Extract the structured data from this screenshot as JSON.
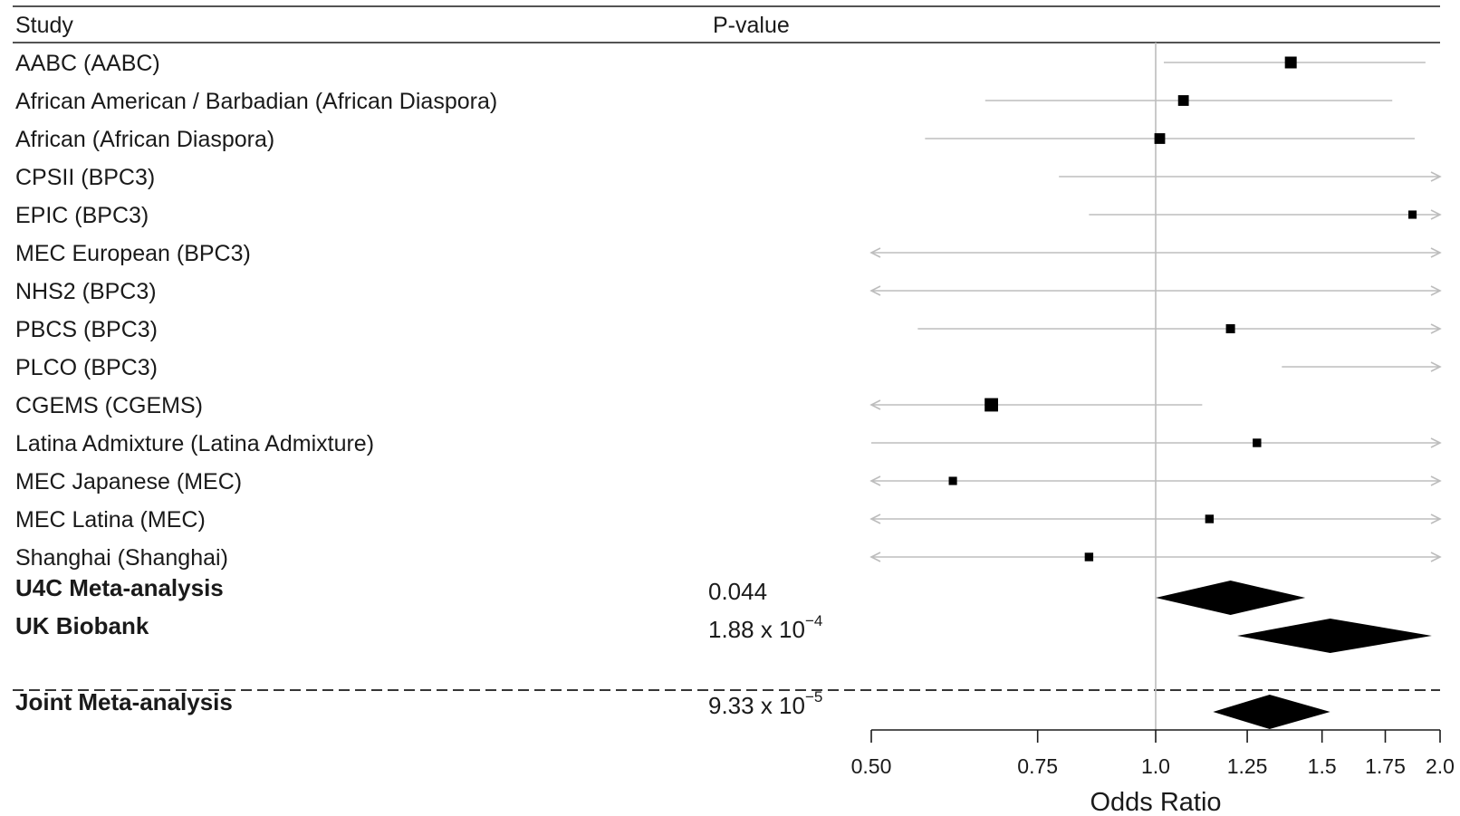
{
  "header": {
    "study": "Study",
    "pvalue": "P-value"
  },
  "chart_data": {
    "type": "forest",
    "xlabel": "Odds Ratio",
    "xscale": "log",
    "xlim": [
      0.5,
      2.0
    ],
    "reference_line": 1.0,
    "ticks": [
      {
        "value": 0.5,
        "label": "0.50"
      },
      {
        "value": 0.75,
        "label": "0.75"
      },
      {
        "value": 1.0,
        "label": "1.0"
      },
      {
        "value": 1.25,
        "label": "1.25"
      },
      {
        "value": 1.5,
        "label": "1.5"
      },
      {
        "value": 1.75,
        "label": "1.75"
      },
      {
        "value": 2.0,
        "label": "2.0"
      }
    ],
    "studies": [
      {
        "label": "AABC (AABC)",
        "or": 1.39,
        "lo": 1.02,
        "hi": 1.93,
        "weight": 3
      },
      {
        "label": "African American / Barbadian (African Diaspora)",
        "or": 1.07,
        "lo": 0.66,
        "hi": 1.78,
        "weight": 2.6
      },
      {
        "label": "African (African Diaspora)",
        "or": 1.01,
        "lo": 0.57,
        "hi": 1.88,
        "weight": 2.6
      },
      {
        "label": "CPSII (BPC3)",
        "or": null,
        "lo": 0.79,
        "hi": 2.0,
        "hi_open": true,
        "weight": 0
      },
      {
        "label": "EPIC (BPC3)",
        "or": 1.87,
        "lo": 0.85,
        "hi": 2.0,
        "hi_open": true,
        "weight": 1.7
      },
      {
        "label": "MEC  European (BPC3)",
        "or": null,
        "lo": 0.5,
        "hi": 2.0,
        "lo_open": true,
        "hi_open": true,
        "weight": 0
      },
      {
        "label": "NHS2 (BPC3)",
        "or": null,
        "lo": 0.5,
        "hi": 2.0,
        "lo_open": true,
        "hi_open": true,
        "weight": 0
      },
      {
        "label": "PBCS (BPC3)",
        "or": 1.2,
        "lo": 0.56,
        "hi": 2.0,
        "hi_open": true,
        "weight": 2
      },
      {
        "label": "PLCO (BPC3)",
        "or": null,
        "lo": 1.36,
        "hi": 2.0,
        "hi_open": true,
        "weight": 0
      },
      {
        "label": "CGEMS (CGEMS)",
        "or": 0.67,
        "lo": 0.5,
        "hi": 1.12,
        "lo_open": true,
        "weight": 3.6
      },
      {
        "label": "Latina Admixture (Latina Admixture)",
        "or": 1.28,
        "lo": 0.5,
        "hi": 2.0,
        "hi_open": true,
        "weight": 1.8
      },
      {
        "label": "MEC Japanese (MEC)",
        "or": 0.61,
        "lo": 0.5,
        "hi": 2.0,
        "lo_open": true,
        "hi_open": true,
        "weight": 1.7
      },
      {
        "label": "MEC Latina (MEC)",
        "or": 1.14,
        "lo": 0.5,
        "hi": 2.0,
        "lo_open": true,
        "hi_open": true,
        "weight": 1.8
      },
      {
        "label": "Shanghai (Shanghai)",
        "or": 0.85,
        "lo": 0.5,
        "hi": 2.0,
        "lo_open": true,
        "hi_open": true,
        "weight": 1.8
      }
    ],
    "summaries": [
      {
        "label": "U4C Meta-analysis",
        "p_base": "0.044",
        "p_exp": "",
        "or": 1.2,
        "lo": 1.0,
        "hi": 1.44
      },
      {
        "label": "UK Biobank",
        "p_base": "1.88 x 10",
        "p_exp": "−4",
        "or": 1.53,
        "lo": 1.22,
        "hi": 1.96
      },
      {
        "label": "Joint Meta-analysis",
        "p_base": "9.33 x 10",
        "p_exp": "−5",
        "or": 1.32,
        "lo": 1.15,
        "hi": 1.53
      }
    ]
  }
}
